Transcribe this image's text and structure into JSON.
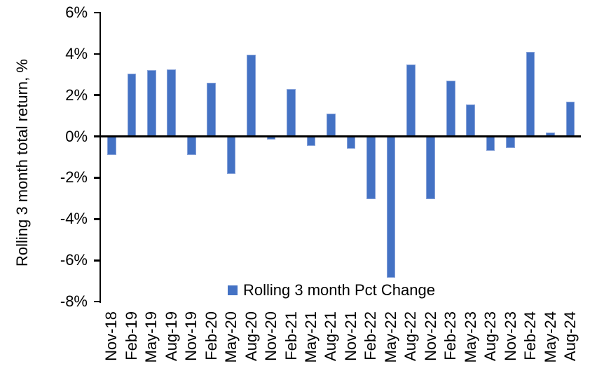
{
  "figure": {
    "background_color": "#ffffff",
    "bar_color": "#4472C4",
    "axis_color": "#000000",
    "text_color": "#000000"
  },
  "legend": {
    "swatch_icon": "blue-square-marker",
    "label": "Rolling 3 month Pct Change"
  },
  "chart_data": {
    "type": "bar",
    "title": "",
    "xlabel": "",
    "ylabel": "Rolling 3 month total return, %",
    "units": "%",
    "ylim": [
      -8,
      6
    ],
    "ytick_step": 2,
    "ytick_labels": [
      "6%",
      "4%",
      "2%",
      "0%",
      "-2%",
      "-4%",
      "-6%",
      "-8%"
    ],
    "grid": false,
    "legend_position": "bottom-inside",
    "series_name": "Rolling 3 month Pct Change",
    "categories": [
      "Nov-18",
      "Feb-19",
      "May-19",
      "Aug-19",
      "Nov-19",
      "Feb-20",
      "May-20",
      "Aug-20",
      "Nov-20",
      "Feb-21",
      "May-21",
      "Aug-21",
      "Nov-21",
      "Feb-22",
      "May-22",
      "Aug-22",
      "Nov-22",
      "Feb-23",
      "May-23",
      "Aug-23",
      "Nov-23",
      "Feb-24",
      "May-24",
      "Aug-24"
    ],
    "values": [
      -0.9,
      3.05,
      3.2,
      3.25,
      -0.9,
      2.6,
      -1.8,
      3.95,
      -0.15,
      2.3,
      -0.45,
      1.1,
      -0.6,
      -3.05,
      -6.85,
      3.5,
      -3.05,
      2.7,
      1.55,
      -0.7,
      -0.55,
      4.1,
      0.2,
      1.7
    ]
  }
}
